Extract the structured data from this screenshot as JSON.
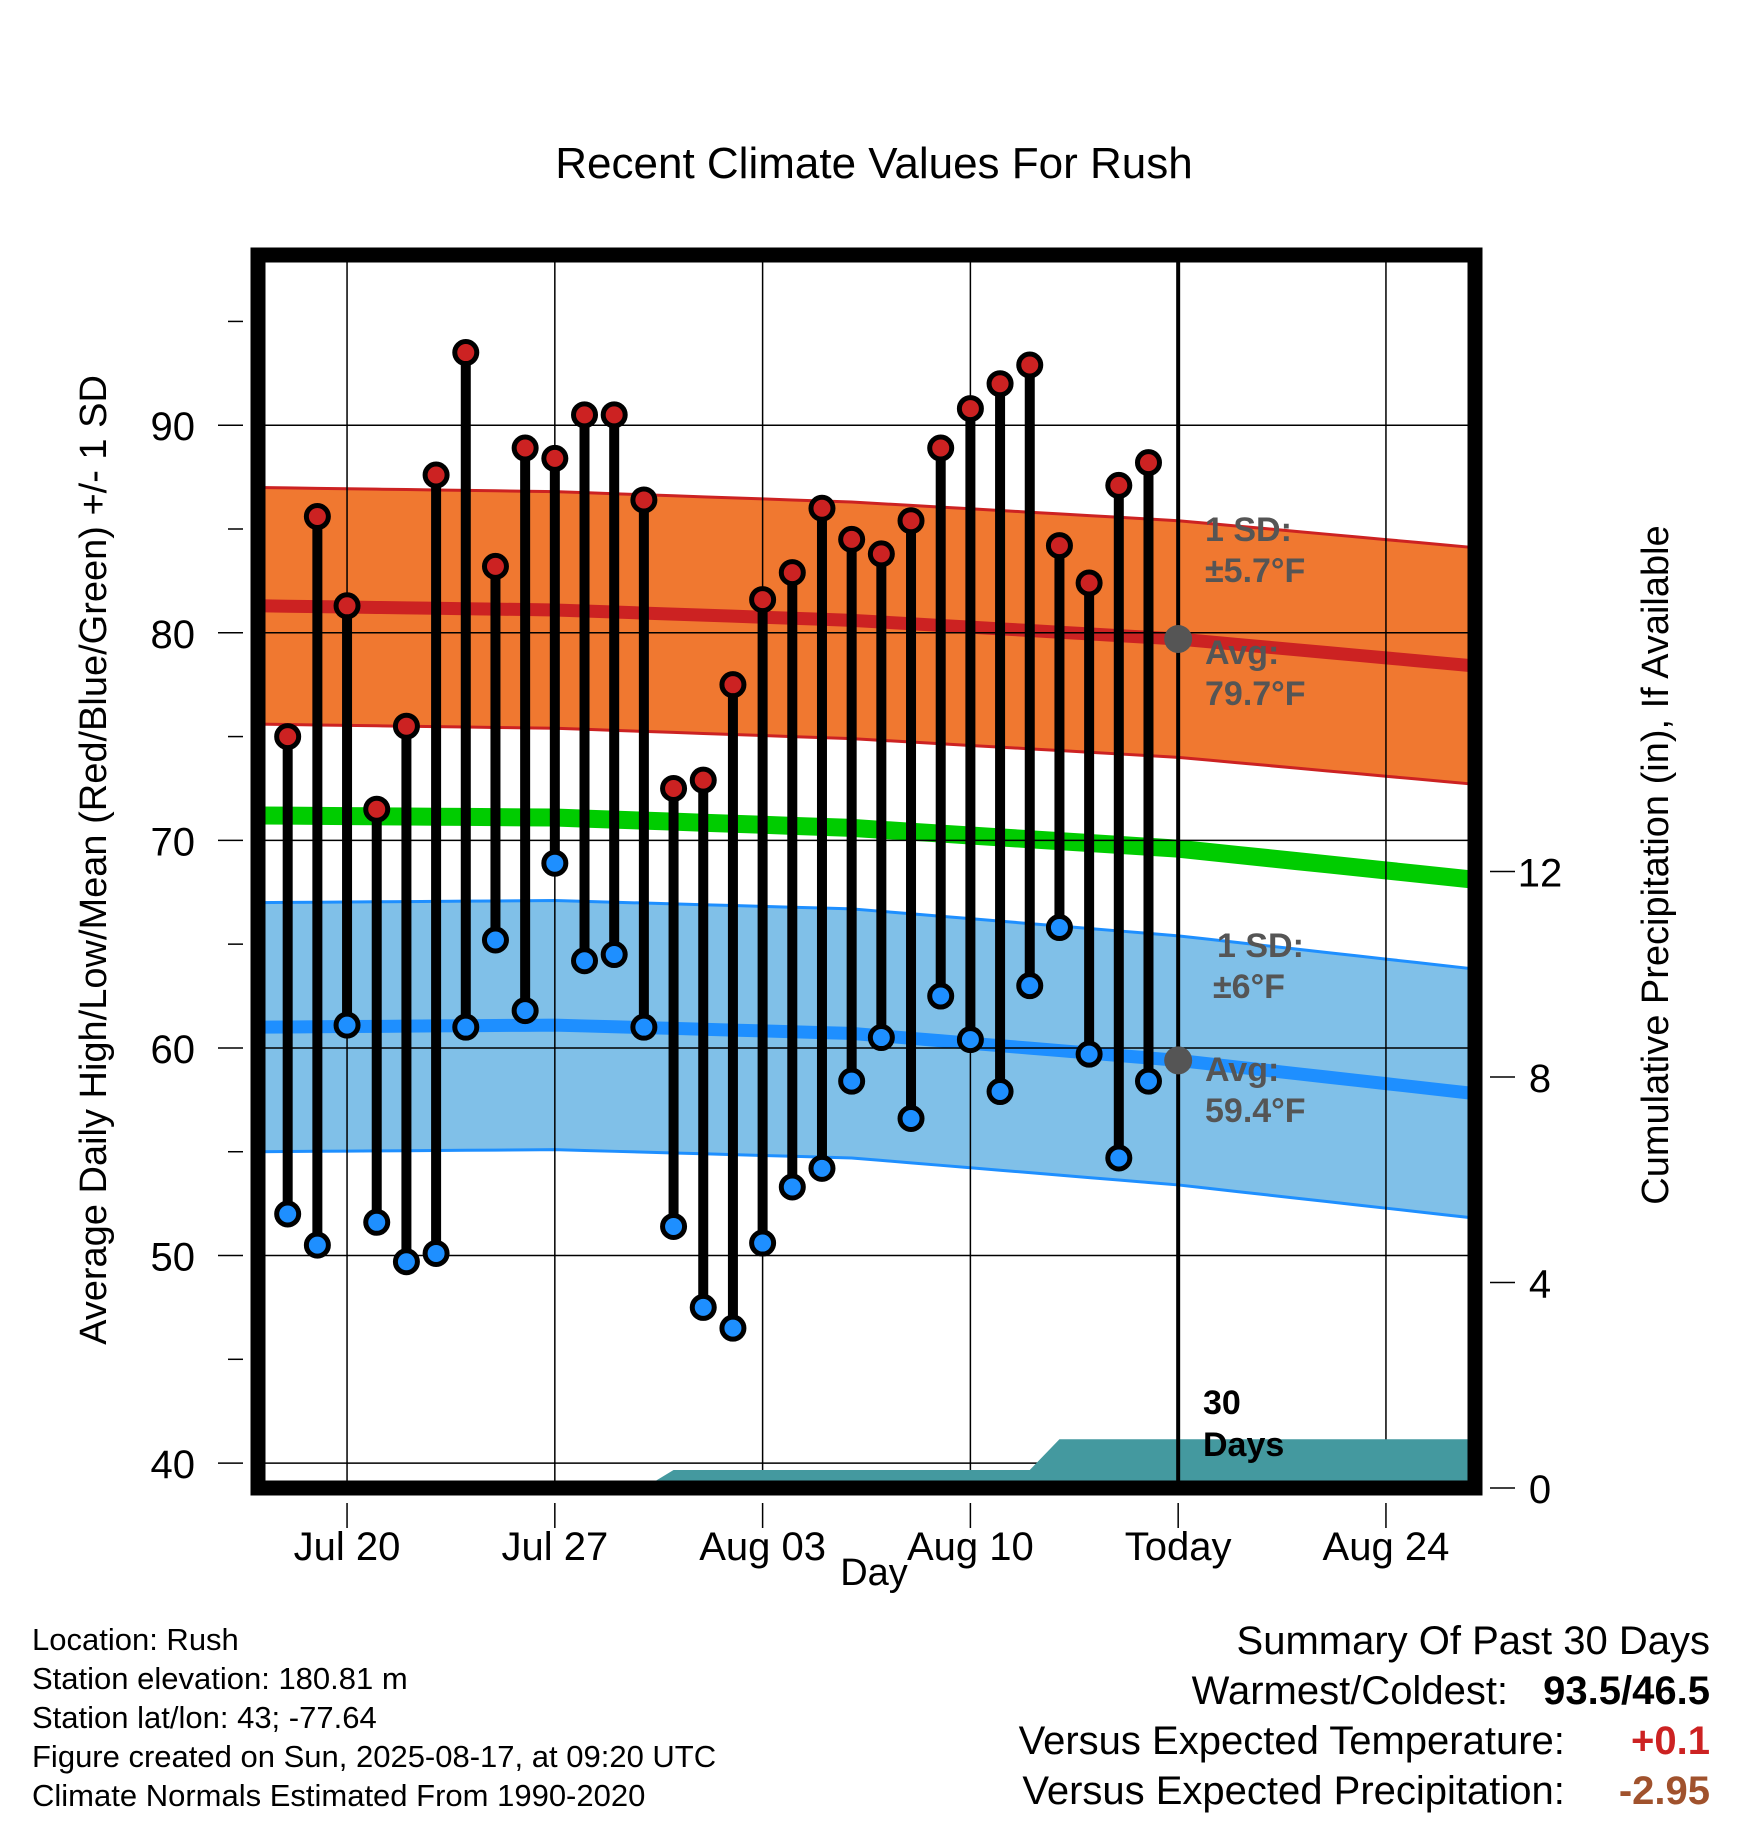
{
  "chart_data": {
    "type": "line",
    "title": "Recent Climate Values For Rush",
    "xlabel": "Day",
    "ylabel": "Average Daily High/Low/Mean (Red/Blue/Green) +/- 1 SD",
    "y2label": "Cumulative Precipitation (in), If Available",
    "x_tick_labels": [
      "Jul 20",
      "Jul 27",
      "Aug 03",
      "Aug 10",
      "Today",
      "Aug 24"
    ],
    "y_ticks": [
      40,
      50,
      60,
      70,
      80,
      90
    ],
    "y2_ticks": [
      0,
      4,
      8,
      12
    ],
    "ylim": [
      38.8,
      98.2
    ],
    "y2lim": [
      0,
      24
    ],
    "x_days": [
      "2025-07-17",
      "2025-08-27"
    ],
    "dates": [
      "2025-07-18",
      "2025-07-19",
      "2025-07-20",
      "2025-07-21",
      "2025-07-22",
      "2025-07-23",
      "2025-07-24",
      "2025-07-25",
      "2025-07-26",
      "2025-07-27",
      "2025-07-28",
      "2025-07-29",
      "2025-07-30",
      "2025-07-31",
      "2025-08-01",
      "2025-08-02",
      "2025-08-03",
      "2025-08-04",
      "2025-08-05",
      "2025-08-06",
      "2025-08-07",
      "2025-08-08",
      "2025-08-09",
      "2025-08-10",
      "2025-08-11",
      "2025-08-12",
      "2025-08-13",
      "2025-08-14",
      "2025-08-15",
      "2025-08-16"
    ],
    "series": [
      {
        "name": "High",
        "values": [
          75.0,
          85.6,
          81.3,
          71.5,
          75.5,
          87.6,
          93.5,
          83.2,
          88.9,
          88.4,
          90.5,
          90.5,
          86.4,
          72.5,
          72.9,
          77.5,
          81.6,
          82.9,
          86.0,
          84.5,
          83.8,
          85.4,
          88.9,
          90.8,
          92.0,
          92.9,
          84.2,
          82.4,
          87.1,
          88.2
        ]
      },
      {
        "name": "Low",
        "values": [
          52.0,
          50.5,
          61.1,
          51.6,
          49.7,
          50.1,
          61.0,
          65.2,
          61.8,
          68.9,
          64.2,
          64.5,
          61.0,
          51.4,
          47.5,
          46.5,
          50.6,
          53.3,
          54.2,
          58.4,
          60.5,
          56.6,
          62.5,
          60.4,
          57.9,
          63.0,
          65.8,
          59.7,
          54.7,
          58.4
        ]
      }
    ],
    "normal_high": {
      "dates": [
        "2025-07-17",
        "2025-07-27",
        "2025-08-06",
        "2025-08-17",
        "2025-08-27"
      ],
      "avg": [
        81.3,
        81.1,
        80.6,
        79.7,
        78.4
      ],
      "sd": 5.7
    },
    "normal_low": {
      "dates": [
        "2025-07-17",
        "2025-07-27",
        "2025-08-06",
        "2025-08-17",
        "2025-08-27"
      ],
      "avg": [
        61.0,
        61.1,
        60.7,
        59.4,
        57.8
      ],
      "sd": 6
    },
    "normal_mean": {
      "dates": [
        "2025-07-17",
        "2025-07-27",
        "2025-08-06",
        "2025-08-17",
        "2025-08-27"
      ],
      "values": [
        71.2,
        71.1,
        70.6,
        69.6,
        68.1
      ]
    },
    "cumulative_precip": {
      "dates": [
        "2025-07-17",
        "2025-07-30",
        "2025-07-31",
        "2025-08-12",
        "2025-08-13",
        "2025-08-27"
      ],
      "values": [
        0,
        0,
        0.35,
        0.35,
        0.95,
        0.95
      ]
    },
    "today": "2025-08-17",
    "grid": true,
    "colors": {
      "high": "#cc2222",
      "high_band": "#f07830",
      "low": "#1e8fff",
      "low_band": "#80c0e8",
      "mean": "#00cc00",
      "precip": "#44999f",
      "note": "#555555"
    }
  },
  "annotations": {
    "high_sd": "1 SD:",
    "high_sd_value": "±5.7°F",
    "high_avg": "Avg:",
    "high_avg_value": "79.7°F",
    "low_sd": "1 SD:",
    "low_sd_value": "±6°F",
    "low_avg": "Avg:",
    "low_avg_value": "59.4°F",
    "days_num": "30",
    "days_word": "Days"
  },
  "station": {
    "location": "Location: Rush",
    "elevation": "Station elevation: 180.81 m",
    "latlon": "Station lat/lon: 43; -77.64",
    "created": "Figure created on Sun, 2025-08-17, at 09:20 UTC",
    "normals": "Climate Normals Estimated From 1990-2020"
  },
  "summary": {
    "title": "Summary Of Past 30 Days",
    "warmest_label": "Warmest/Coldest:",
    "warmest_value": "93.5/46.5",
    "temp_label": "Versus Expected Temperature:",
    "temp_value": "+0.1",
    "temp_color": "#cc2222",
    "precip_label": "Versus Expected Precipitation:",
    "precip_value": "-2.95",
    "precip_color": "#a0522d"
  }
}
